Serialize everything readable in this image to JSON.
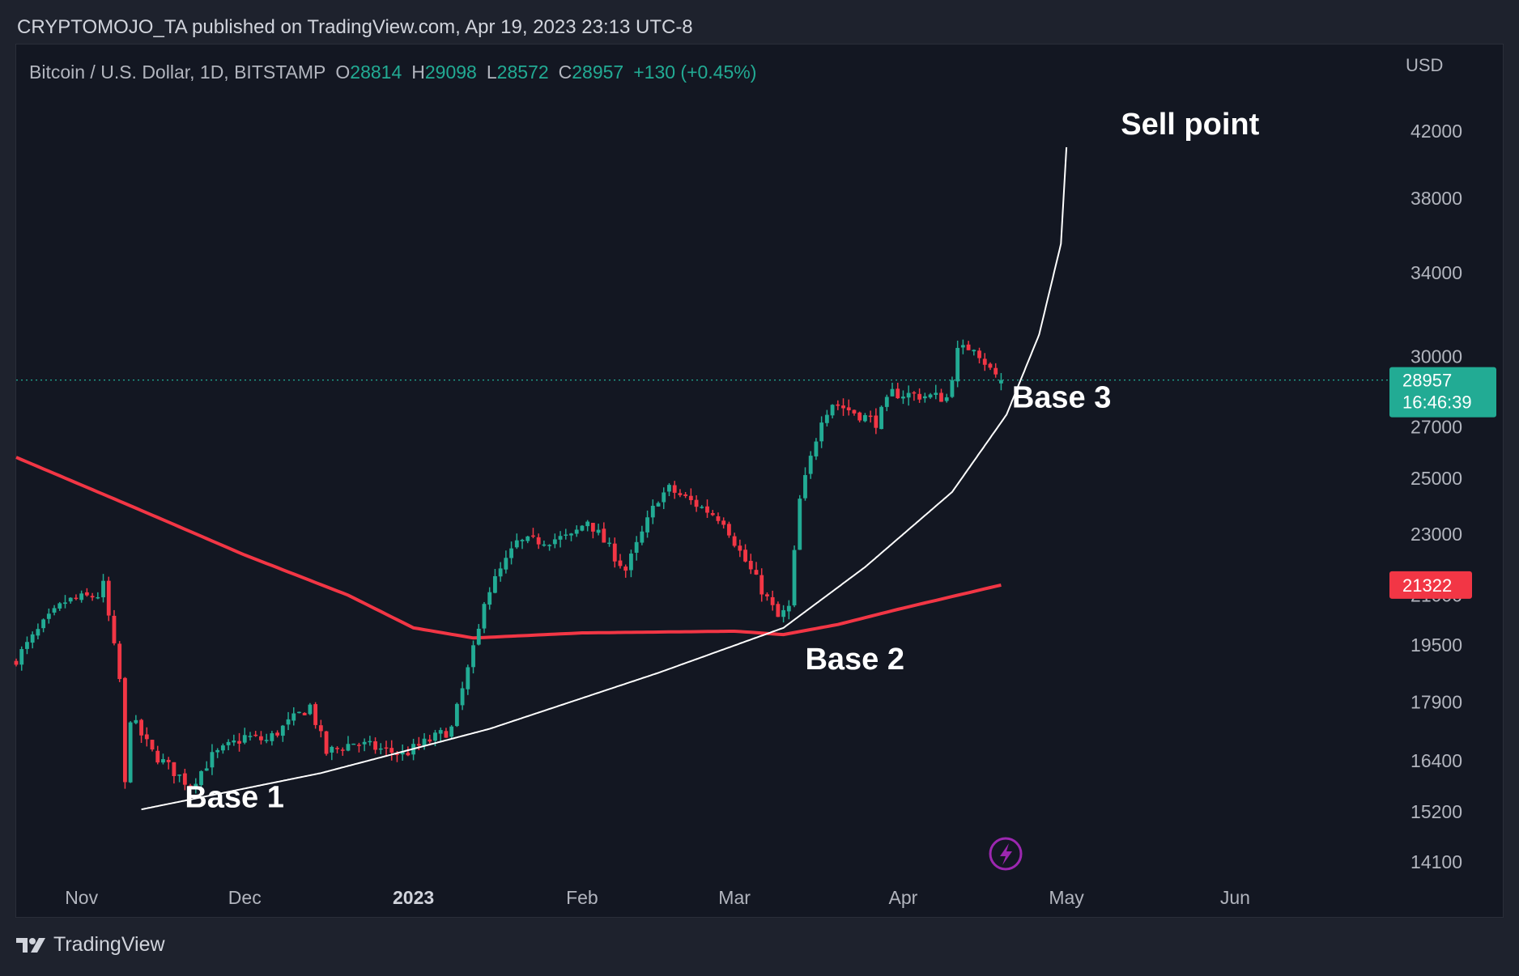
{
  "header": {
    "published_line": "CRYPTOMOJO_TA published on TradingView.com, Apr 19, 2023 23:13 UTC-8"
  },
  "legend": {
    "symbol": "Bitcoin / U.S. Dollar, 1D, BITSTAMP",
    "open_label": "O",
    "open": "28814",
    "high_label": "H",
    "high": "29098",
    "low_label": "L",
    "low": "28572",
    "close_label": "C",
    "close": "28957",
    "change": "+130 (+0.45%)"
  },
  "footer": {
    "brand": "TradingView"
  },
  "colors": {
    "background": "#131722",
    "up": "#22ab94",
    "down": "#f23645",
    "ma": "#f23645",
    "curve": "#ffffff",
    "axis_text": "#b2b5be"
  },
  "chart_data": {
    "type": "candlestick",
    "currency": "USD",
    "scale": "log",
    "ylim": [
      13500,
      44000
    ],
    "y_ticks": [
      42000,
      38000,
      34000,
      30000,
      27000,
      25000,
      23000,
      21000,
      19500,
      17900,
      16400,
      15200,
      14100
    ],
    "x_range": [
      "2022-10-20",
      "2023-07-01"
    ],
    "x_ticks": [
      {
        "date": "2022-11-01",
        "label": "Nov",
        "bold": false
      },
      {
        "date": "2022-12-01",
        "label": "Dec",
        "bold": false
      },
      {
        "date": "2023-01-01",
        "label": "2023",
        "bold": true
      },
      {
        "date": "2023-02-01",
        "label": "Feb",
        "bold": false
      },
      {
        "date": "2023-03-01",
        "label": "Mar",
        "bold": false
      },
      {
        "date": "2023-04-01",
        "label": "Apr",
        "bold": false
      },
      {
        "date": "2023-05-01",
        "label": "May",
        "bold": false
      },
      {
        "date": "2023-06-01",
        "label": "Jun",
        "bold": false
      }
    ],
    "price_anchors": [
      {
        "date": "2022-10-20",
        "close": 19100
      },
      {
        "date": "2022-10-25",
        "close": 20100
      },
      {
        "date": "2022-10-29",
        "close": 20800
      },
      {
        "date": "2022-11-04",
        "close": 21000
      },
      {
        "date": "2022-11-05",
        "close": 21300
      },
      {
        "date": "2022-11-08",
        "close": 18500
      },
      {
        "date": "2022-11-09",
        "close": 15800
      },
      {
        "date": "2022-11-10",
        "close": 17500
      },
      {
        "date": "2022-11-14",
        "close": 16600
      },
      {
        "date": "2022-11-21",
        "close": 15800
      },
      {
        "date": "2022-11-25",
        "close": 16500
      },
      {
        "date": "2022-12-01",
        "close": 17000
      },
      {
        "date": "2022-12-05",
        "close": 16900
      },
      {
        "date": "2022-12-13",
        "close": 17800
      },
      {
        "date": "2022-12-16",
        "close": 16600
      },
      {
        "date": "2022-12-21",
        "close": 16850
      },
      {
        "date": "2022-12-30",
        "close": 16550
      },
      {
        "date": "2023-01-08",
        "close": 17200
      },
      {
        "date": "2023-01-13",
        "close": 19900
      },
      {
        "date": "2023-01-14",
        "close": 20900
      },
      {
        "date": "2023-01-20",
        "close": 22700
      },
      {
        "date": "2023-01-30",
        "close": 22900
      },
      {
        "date": "2023-02-02",
        "close": 23500
      },
      {
        "date": "2023-02-09",
        "close": 21800
      },
      {
        "date": "2023-02-15",
        "close": 24300
      },
      {
        "date": "2023-02-17",
        "close": 24600
      },
      {
        "date": "2023-02-27",
        "close": 23500
      },
      {
        "date": "2023-03-02",
        "close": 22400
      },
      {
        "date": "2023-03-09",
        "close": 20300
      },
      {
        "date": "2023-03-11",
        "close": 20600
      },
      {
        "date": "2023-03-13",
        "close": 24200
      },
      {
        "date": "2023-03-17",
        "close": 27400
      },
      {
        "date": "2023-03-19",
        "close": 28000
      },
      {
        "date": "2023-03-27",
        "close": 27200
      },
      {
        "date": "2023-03-30",
        "close": 28400
      },
      {
        "date": "2023-04-09",
        "close": 28200
      },
      {
        "date": "2023-04-11",
        "close": 30200
      },
      {
        "date": "2023-04-14",
        "close": 30500
      },
      {
        "date": "2023-04-17",
        "close": 29400
      },
      {
        "date": "2023-04-19",
        "close": 28957
      }
    ],
    "moving_average": [
      {
        "date": "2022-10-20",
        "value": 25800
      },
      {
        "date": "2022-11-10",
        "value": 24000
      },
      {
        "date": "2022-12-01",
        "value": 22300
      },
      {
        "date": "2022-12-20",
        "value": 21000
      },
      {
        "date": "2023-01-01",
        "value": 20000
      },
      {
        "date": "2023-01-12",
        "value": 19700
      },
      {
        "date": "2023-02-01",
        "value": 19850
      },
      {
        "date": "2023-03-01",
        "value": 19900
      },
      {
        "date": "2023-03-10",
        "value": 19800
      },
      {
        "date": "2023-03-20",
        "value": 20100
      },
      {
        "date": "2023-04-01",
        "value": 20600
      },
      {
        "date": "2023-04-19",
        "value": 21322
      }
    ],
    "moving_average_value": "21322",
    "last_price": {
      "value": "28957",
      "countdown": "16:46:39"
    },
    "curve": [
      {
        "date": "2022-11-12",
        "price": 15250
      },
      {
        "date": "2022-12-15",
        "price": 16100
      },
      {
        "date": "2023-01-15",
        "price": 17200
      },
      {
        "date": "2023-02-15",
        "price": 18700
      },
      {
        "date": "2023-03-10",
        "price": 20000
      },
      {
        "date": "2023-03-25",
        "price": 21900
      },
      {
        "date": "2023-04-10",
        "price": 24500
      },
      {
        "date": "2023-04-20",
        "price": 27500
      },
      {
        "date": "2023-04-26",
        "price": 31000
      },
      {
        "date": "2023-04-30",
        "price": 35500
      },
      {
        "date": "2023-05-01",
        "price": 41000
      }
    ],
    "annotations": [
      {
        "text": "Base 1",
        "date": "2022-11-20",
        "price": 15300
      },
      {
        "text": "Base 2",
        "date": "2023-03-14",
        "price": 18800
      },
      {
        "text": "Base 3",
        "date": "2023-04-21",
        "price": 27800
      },
      {
        "text": "Sell point",
        "date": "2023-05-11",
        "price": 41800
      }
    ]
  }
}
